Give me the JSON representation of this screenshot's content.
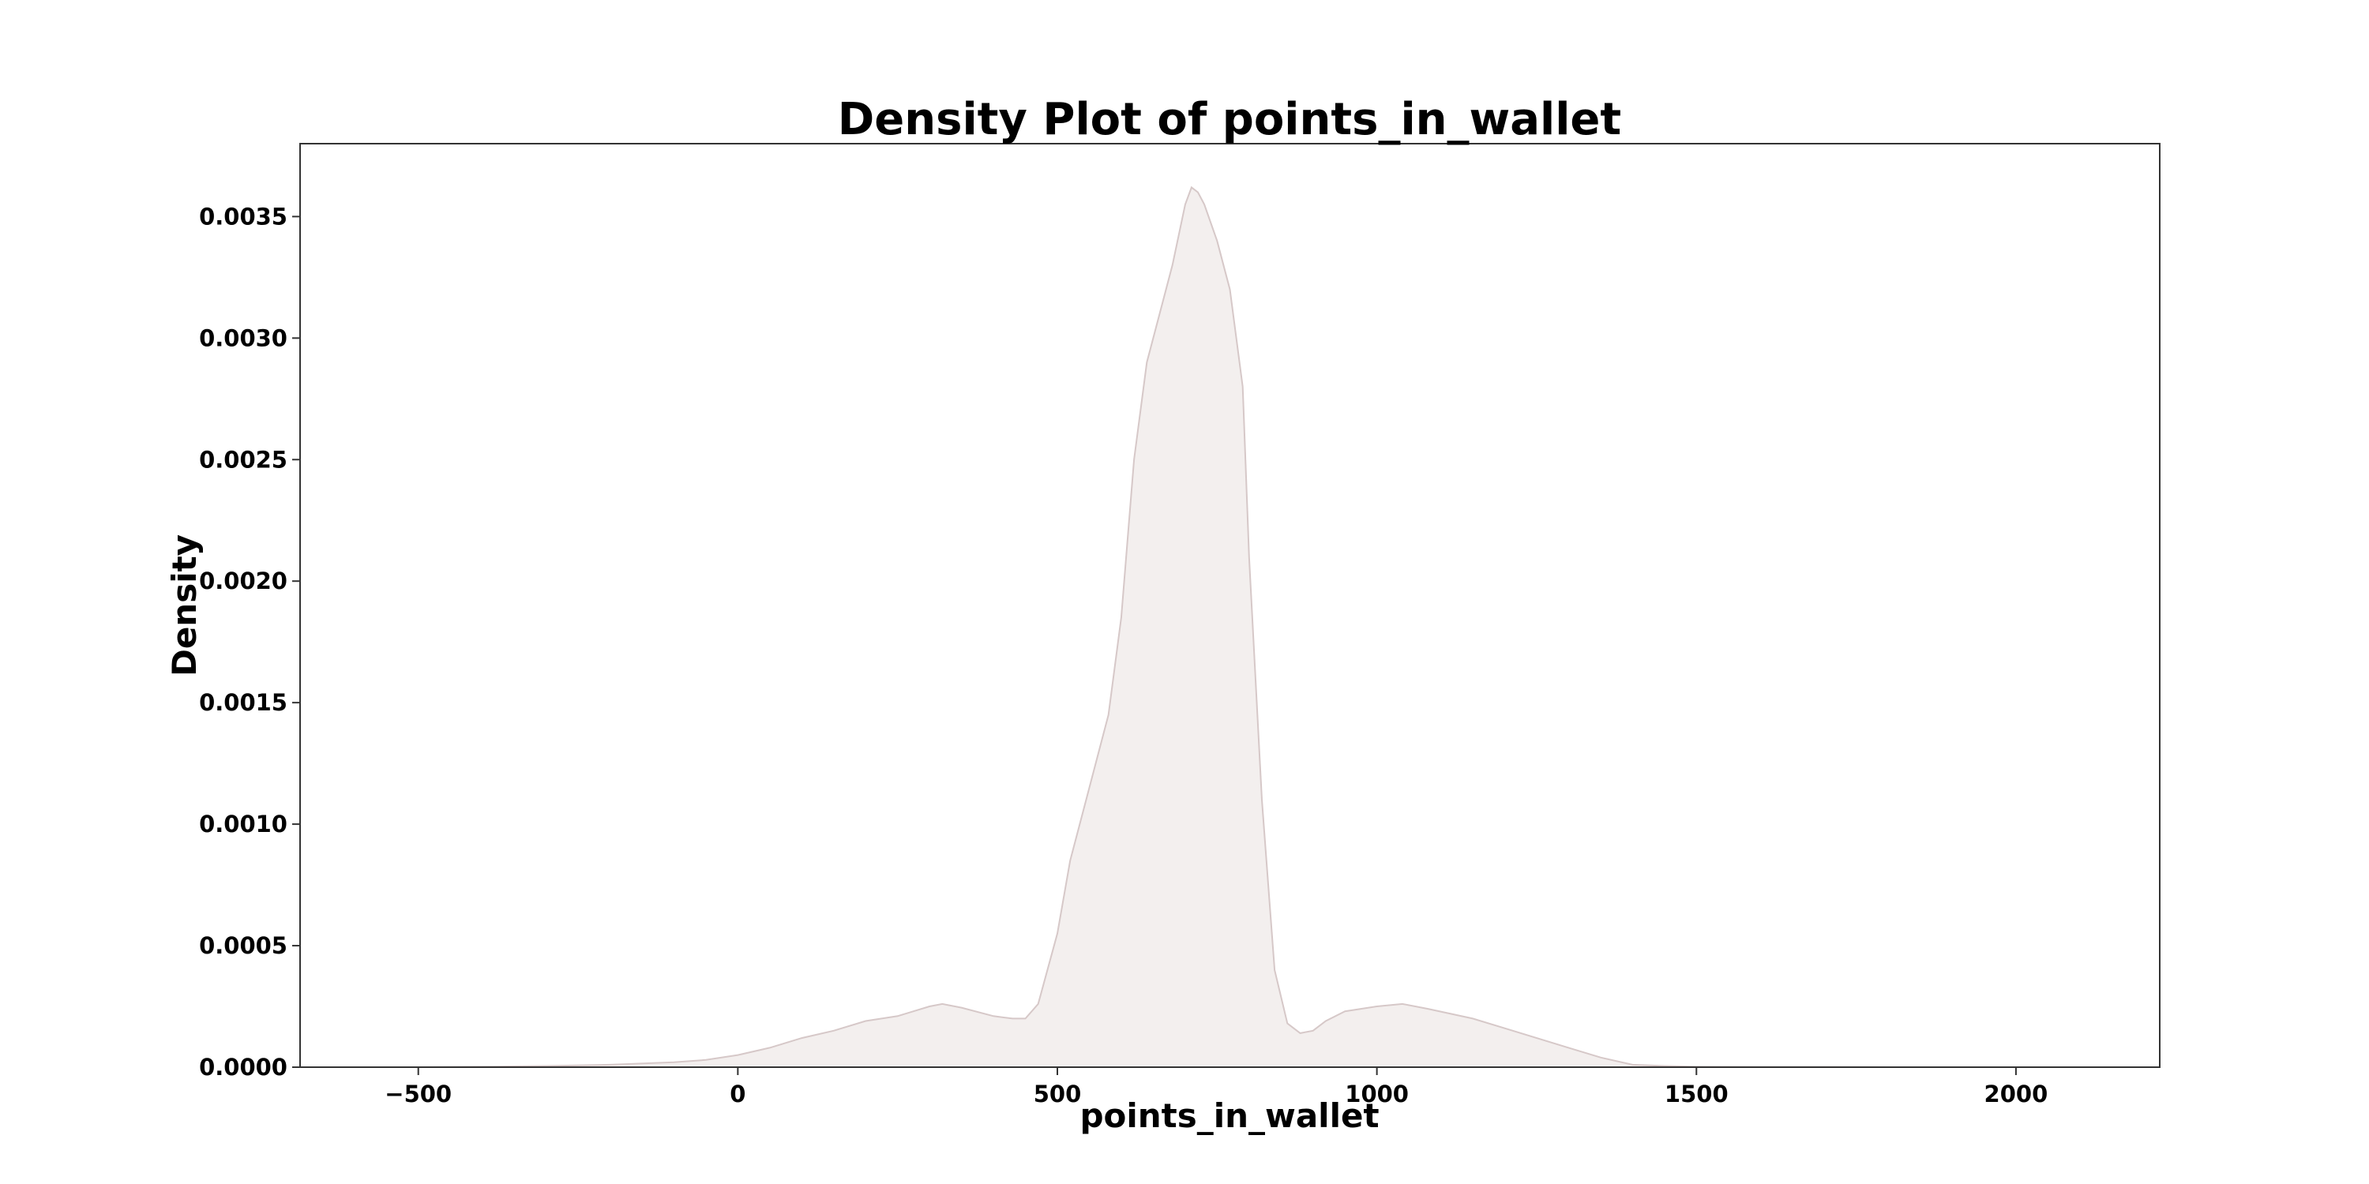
{
  "chart_data": {
    "type": "area",
    "title": "Density Plot of points_in_wallet",
    "xlabel": "points_in_wallet",
    "ylabel": "Density",
    "xlim": [
      -685,
      2225
    ],
    "ylim": [
      0,
      0.0038
    ],
    "xticks": [
      -500,
      0,
      500,
      1000,
      1500,
      2000
    ],
    "xtick_labels": [
      "−500",
      "0",
      "500",
      "1000",
      "1500",
      "2000"
    ],
    "yticks": [
      0,
      0.0005,
      0.001,
      0.0015,
      0.002,
      0.0025,
      0.003,
      0.0035
    ],
    "ytick_labels": [
      "0.0000",
      "0.0005",
      "0.0010",
      "0.0015",
      "0.0020",
      "0.0025",
      "0.0030",
      "0.0035"
    ],
    "grid": false,
    "series": [
      {
        "fill_color": "#f3efee",
        "line_color": "#d6c8c8",
        "x": [
          -500,
          -400,
          -300,
          -200,
          -100,
          -50,
          0,
          50,
          100,
          150,
          200,
          250,
          300,
          320,
          350,
          400,
          430,
          450,
          470,
          500,
          520,
          550,
          580,
          600,
          620,
          640,
          660,
          680,
          700,
          710,
          720,
          730,
          750,
          770,
          790,
          800,
          820,
          840,
          860,
          880,
          900,
          920,
          950,
          1000,
          1040,
          1080,
          1150,
          1200,
          1250,
          1300,
          1350,
          1400,
          1450,
          1500,
          1600,
          1700,
          1800,
          1900,
          2000,
          2100
        ],
        "y": [
          0,
          2e-06,
          5e-06,
          1e-05,
          2e-05,
          3e-05,
          5e-05,
          8e-05,
          0.00012,
          0.00015,
          0.00019,
          0.00021,
          0.00025,
          0.00026,
          0.000245,
          0.00021,
          0.0002,
          0.0002,
          0.00026,
          0.00055,
          0.00085,
          0.00115,
          0.00145,
          0.00185,
          0.0025,
          0.0029,
          0.0031,
          0.0033,
          0.00355,
          0.00362,
          0.0036,
          0.00355,
          0.0034,
          0.0032,
          0.0028,
          0.0021,
          0.0011,
          0.0004,
          0.00018,
          0.00014,
          0.00015,
          0.00019,
          0.00023,
          0.00025,
          0.00026,
          0.00024,
          0.0002,
          0.00016,
          0.00012,
          8e-05,
          4e-05,
          1e-05,
          5e-06,
          2e-06,
          1e-06,
          5e-07,
          0,
          0,
          0,
          0
        ]
      }
    ]
  }
}
